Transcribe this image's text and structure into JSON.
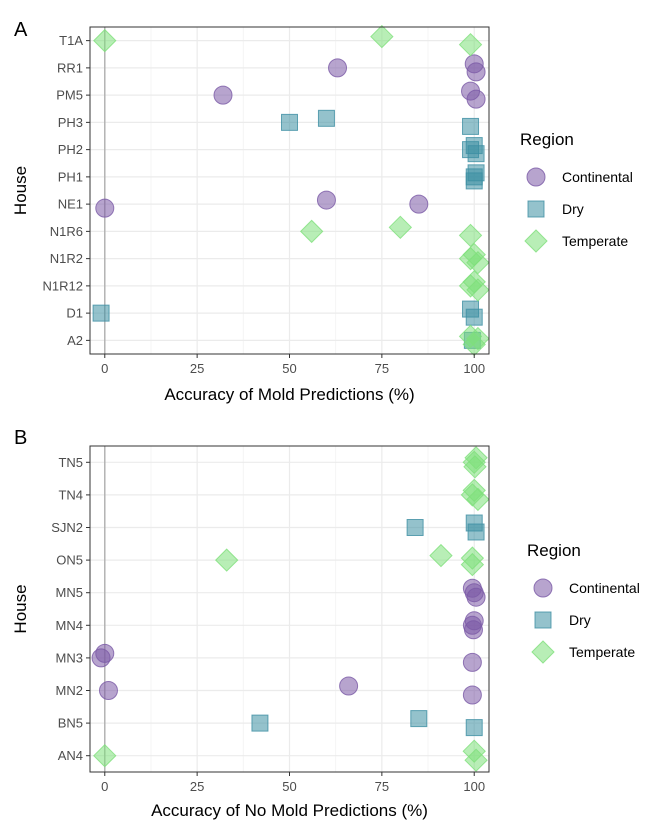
{
  "colors": {
    "Continental": "#7b5aa6",
    "Dry": "#3d8fa3",
    "Temperate": "#7ee07a",
    "grid_major": "#ebebeb",
    "grid_minor": "#f5f5f5",
    "zero_line": "#b3b3b3"
  },
  "legend": {
    "title": "Region",
    "items": [
      "Continental",
      "Dry",
      "Temperate"
    ]
  },
  "chart_data": [
    {
      "type": "scatter",
      "panel": "A",
      "xlabel": "Accuracy of Mold Predictions (%)",
      "ylabel": "House",
      "xlim": [
        -4,
        104
      ],
      "xticks": [
        0,
        25,
        50,
        75,
        100
      ],
      "categories": [
        "T1A",
        "RR1",
        "PM5",
        "PH3",
        "PH2",
        "PH1",
        "NE1",
        "N1R6",
        "N1R2",
        "N1R12",
        "D1",
        "A2"
      ],
      "series": [
        {
          "name": "Continental",
          "points": [
            {
              "y": "RR1",
              "x": 63
            },
            {
              "y": "RR1",
              "x": 100
            },
            {
              "y": "RR1",
              "x": 100.5
            },
            {
              "y": "PM5",
              "x": 32
            },
            {
              "y": "PM5",
              "x": 99
            },
            {
              "y": "PM5",
              "x": 100.5
            },
            {
              "y": "NE1",
              "x": 85
            },
            {
              "y": "NE1",
              "x": 60
            },
            {
              "y": "NE1",
              "x": 0
            }
          ]
        },
        {
          "name": "Dry",
          "points": [
            {
              "y": "PH3",
              "x": 50
            },
            {
              "y": "PH3",
              "x": 60
            },
            {
              "y": "PH3",
              "x": 99
            },
            {
              "y": "PH2",
              "x": 99
            },
            {
              "y": "PH2",
              "x": 100
            },
            {
              "y": "PH2",
              "x": 100.5
            },
            {
              "y": "PH1",
              "x": 100
            },
            {
              "y": "PH1",
              "x": 100.5
            },
            {
              "y": "PH1",
              "x": 100
            },
            {
              "y": "D1",
              "x": -1
            },
            {
              "y": "D1",
              "x": 99
            },
            {
              "y": "D1",
              "x": 100
            },
            {
              "y": "A2",
              "x": 99.5
            }
          ]
        },
        {
          "name": "Temperate",
          "points": [
            {
              "y": "T1A",
              "x": 0
            },
            {
              "y": "T1A",
              "x": 75
            },
            {
              "y": "T1A",
              "x": 99
            },
            {
              "y": "N1R6",
              "x": 56
            },
            {
              "y": "N1R6",
              "x": 80
            },
            {
              "y": "N1R6",
              "x": 99
            },
            {
              "y": "N1R2",
              "x": 99
            },
            {
              "y": "N1R2",
              "x": 100
            },
            {
              "y": "N1R2",
              "x": 101
            },
            {
              "y": "N1R12",
              "x": 99
            },
            {
              "y": "N1R12",
              "x": 100
            },
            {
              "y": "N1R12",
              "x": 101
            },
            {
              "y": "A2",
              "x": 99
            },
            {
              "y": "A2",
              "x": 100
            },
            {
              "y": "A2",
              "x": 101
            }
          ]
        }
      ]
    },
    {
      "type": "scatter",
      "panel": "B",
      "xlabel": "Accuracy of No Mold Predictions (%)",
      "ylabel": "House",
      "xlim": [
        -4,
        104
      ],
      "xticks": [
        0,
        25,
        50,
        75,
        100
      ],
      "categories": [
        "TN5",
        "TN4",
        "SJN2",
        "ON5",
        "MN5",
        "MN4",
        "MN3",
        "MN2",
        "BN5",
        "AN4"
      ],
      "series": [
        {
          "name": "Continental",
          "points": [
            {
              "y": "MN5",
              "x": 100
            },
            {
              "y": "MN5",
              "x": 99.5
            },
            {
              "y": "MN5",
              "x": 100.5
            },
            {
              "y": "MN4",
              "x": 99.5
            },
            {
              "y": "MN4",
              "x": 100
            },
            {
              "y": "MN4",
              "x": 99.8
            },
            {
              "y": "MN3",
              "x": -1
            },
            {
              "y": "MN3",
              "x": 0
            },
            {
              "y": "MN3",
              "x": 99.5
            },
            {
              "y": "MN2",
              "x": 1
            },
            {
              "y": "MN2",
              "x": 66
            },
            {
              "y": "MN2",
              "x": 99.5
            }
          ]
        },
        {
          "name": "Dry",
          "points": [
            {
              "y": "SJN2",
              "x": 84
            },
            {
              "y": "SJN2",
              "x": 100
            },
            {
              "y": "SJN2",
              "x": 100.5
            },
            {
              "y": "BN5",
              "x": 42
            },
            {
              "y": "BN5",
              "x": 85
            },
            {
              "y": "BN5",
              "x": 100
            }
          ]
        },
        {
          "name": "Temperate",
          "points": [
            {
              "y": "TN5",
              "x": 100
            },
            {
              "y": "TN5",
              "x": 100.5
            },
            {
              "y": "TN5",
              "x": 100.2
            },
            {
              "y": "TN4",
              "x": 99.5
            },
            {
              "y": "TN4",
              "x": 100
            },
            {
              "y": "TN4",
              "x": 101
            },
            {
              "y": "ON5",
              "x": 33
            },
            {
              "y": "ON5",
              "x": 91
            },
            {
              "y": "ON5",
              "x": 99.5
            },
            {
              "y": "ON5",
              "x": 99.5
            },
            {
              "y": "AN4",
              "x": 0
            },
            {
              "y": "AN4",
              "x": 100
            },
            {
              "y": "AN4",
              "x": 100.5
            }
          ]
        }
      ]
    }
  ]
}
